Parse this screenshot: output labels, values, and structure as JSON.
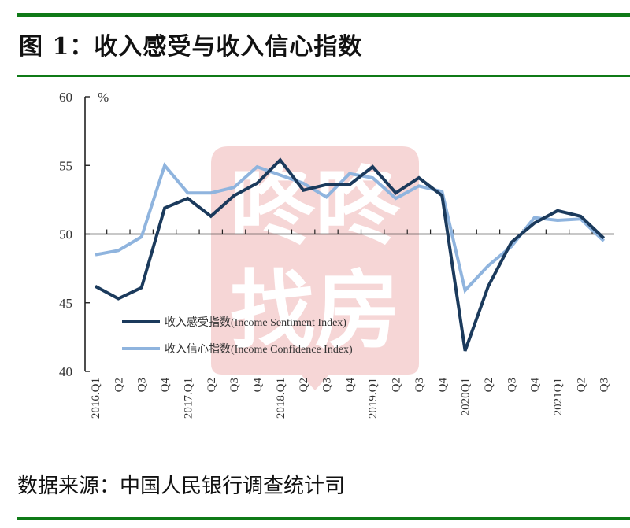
{
  "header": {
    "title": "图 1：收入感受与收入信心指数"
  },
  "footer": {
    "source": "数据来源：中国人民银行调查统计司"
  },
  "watermark": {
    "line1": "咚咚",
    "line2": "找房",
    "color": "#f6d6d6"
  },
  "colors": {
    "rule": "#0f7a17",
    "sentiment": "#1b3a5c",
    "confidence": "#8fb4de",
    "axis": "#222222"
  },
  "chart_data": {
    "type": "line",
    "title": "图 1：收入感受与收入信心指数",
    "xlabel": "",
    "ylabel": "%",
    "ylim": [
      40,
      60
    ],
    "yticks": [
      40,
      45,
      50,
      55,
      60
    ],
    "baseline": 50,
    "grid": false,
    "legend_position": "lower-left inside",
    "categories": [
      "2016.Q1",
      "Q2",
      "Q3",
      "Q4",
      "2017.Q1",
      "Q2",
      "Q3",
      "Q4",
      "2018.Q1",
      "Q2",
      "Q3",
      "Q4",
      "2019.Q1",
      "Q2",
      "Q3",
      "Q4",
      "2020Q1",
      "Q2",
      "Q3",
      "Q4",
      "2021Q1",
      "Q2",
      "Q3"
    ],
    "series": [
      {
        "name": "收入感受指数(Income Sentiment Index)",
        "color": "#1b3a5c",
        "values": [
          46.2,
          45.3,
          46.1,
          51.9,
          52.6,
          51.3,
          52.8,
          53.7,
          55.4,
          53.2,
          53.6,
          53.6,
          54.9,
          53.0,
          54.1,
          52.8,
          41.5,
          46.2,
          49.4,
          50.8,
          51.7,
          51.3,
          49.7
        ]
      },
      {
        "name": "收入信心指数(Income Confidence Index)",
        "color": "#8fb4de",
        "values": [
          48.5,
          48.8,
          49.8,
          55.0,
          53.0,
          53.0,
          53.4,
          54.9,
          54.3,
          53.7,
          52.7,
          54.4,
          54.1,
          52.6,
          53.5,
          53.1,
          45.9,
          47.7,
          49.1,
          51.2,
          51.0,
          51.1,
          49.5
        ]
      }
    ]
  }
}
